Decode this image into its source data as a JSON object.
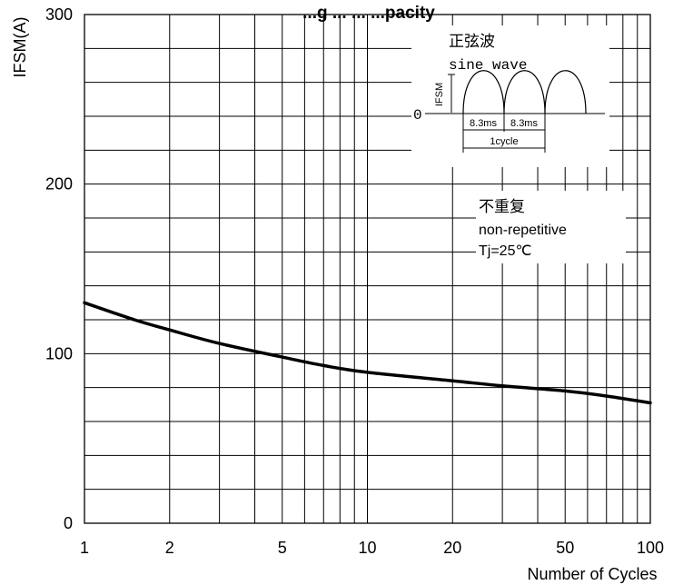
{
  "chart_data": {
    "type": "line",
    "title": "...g ... ... ...pacity",
    "ylabel": "IFSM(A)",
    "xlabel": "Number of Cycles",
    "x_scale": "log",
    "xlim": [
      1,
      100
    ],
    "ylim": [
      0,
      300
    ],
    "grid": true,
    "x_ticks": [
      {
        "value": 1,
        "label": "1"
      },
      {
        "value": 2,
        "label": "2"
      },
      {
        "value": 5,
        "label": "5"
      },
      {
        "value": 10,
        "label": "10"
      },
      {
        "value": 20,
        "label": "20"
      },
      {
        "value": 50,
        "label": "50"
      },
      {
        "value": 100,
        "label": "100"
      }
    ],
    "y_ticks": [
      {
        "value": 0,
        "label": "0"
      },
      {
        "value": 100,
        "label": "100"
      },
      {
        "value": 200,
        "label": "200"
      },
      {
        "value": 300,
        "label": "300"
      }
    ],
    "series": [
      {
        "x": [
          1,
          1.5,
          2,
          3,
          5,
          7,
          10,
          20,
          30,
          50,
          70,
          100
        ],
        "y": [
          130,
          120,
          114,
          106,
          98,
          93,
          89,
          84,
          81,
          78,
          75,
          71
        ]
      }
    ],
    "inset": {
      "label_cn": "正弦波",
      "label_en": "sine wave",
      "axis_label": "IFSM",
      "zero_label": "0",
      "half_period_1": "8.3ms",
      "half_period_2": "8.3ms",
      "cycle_label": "1cycle"
    },
    "annotation": {
      "line_cn": "不重复",
      "line_en": "non-repetitive",
      "line_cond": "Tj=25℃"
    }
  }
}
